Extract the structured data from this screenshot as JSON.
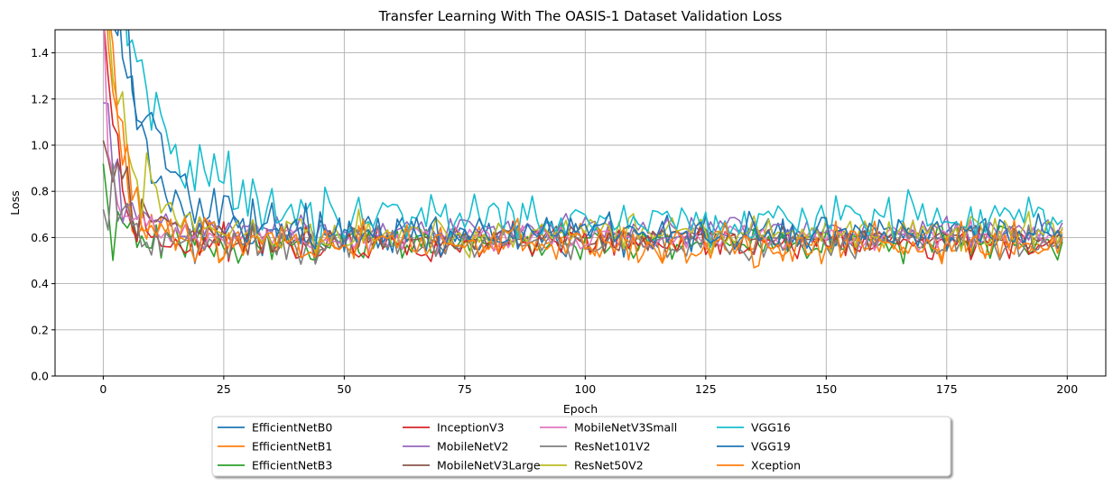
{
  "chart_data": {
    "type": "line",
    "title": "Transfer Learning With The OASIS-1 Dataset Validation Loss",
    "xlabel": "Epoch",
    "ylabel": "Loss",
    "xlim": [
      -10,
      208
    ],
    "ylim": [
      0,
      1.5
    ],
    "xticks": [
      0,
      25,
      50,
      75,
      100,
      125,
      150,
      175,
      200
    ],
    "yticks": [
      0.0,
      0.2,
      0.4,
      0.6,
      0.8,
      1.0,
      1.2,
      1.4
    ],
    "grid": true,
    "legend_position": "below-center",
    "legend_columns": 5,
    "epochs": 200,
    "series": [
      {
        "name": "EfficientNetB0",
        "color": "#1f77b4",
        "curve": {
          "start": 2.2,
          "tau": 6,
          "base": 0.61,
          "noise": 0.035
        }
      },
      {
        "name": "EfficientNetB1",
        "color": "#ff7f0e",
        "curve": {
          "start": 1.8,
          "tau": 3,
          "base": 0.585,
          "noise": 0.04
        }
      },
      {
        "name": "EfficientNetB3",
        "color": "#2ca02c",
        "curve": {
          "start": 0.85,
          "tau": 2,
          "base": 0.575,
          "noise": 0.035
        }
      },
      {
        "name": "InceptionV3",
        "color": "#d62728",
        "curve": {
          "start": 1.6,
          "tau": 3,
          "base": 0.58,
          "noise": 0.035
        }
      },
      {
        "name": "MobileNetV2",
        "color": "#9467bd",
        "curve": {
          "start": 1.1,
          "tau": 4,
          "base": 0.635,
          "noise": 0.03
        }
      },
      {
        "name": "MobileNetV3Large",
        "color": "#8c564b",
        "curve": {
          "start": 1.03,
          "tau": 5,
          "base": 0.6,
          "noise": 0.03
        }
      },
      {
        "name": "MobileNetV3Small",
        "color": "#e377c2",
        "curve": {
          "start": 1.5,
          "tau": 2,
          "base": 0.6,
          "noise": 0.03
        }
      },
      {
        "name": "ResNet101V2",
        "color": "#7f7f7f",
        "curve": {
          "start": 0.95,
          "tau": 4,
          "base": 0.575,
          "noise": 0.035
        }
      },
      {
        "name": "ResNet50V2",
        "color": "#bcbd22",
        "curve": {
          "start": 1.8,
          "tau": 5,
          "base": 0.625,
          "noise": 0.04
        }
      },
      {
        "name": "VGG16",
        "color": "#17becf",
        "curve": {
          "start": 2.0,
          "tau": 10,
          "base": 0.68,
          "noise": 0.045
        }
      },
      {
        "name": "VGG19",
        "color": "#1f77b4",
        "curve": {
          "start": 2.0,
          "tau": 8,
          "base": 0.62,
          "noise": 0.04
        }
      },
      {
        "name": "Xception",
        "color": "#ff7f0e",
        "curve": {
          "start": 1.9,
          "tau": 4,
          "base": 0.575,
          "noise": 0.045
        }
      }
    ]
  }
}
